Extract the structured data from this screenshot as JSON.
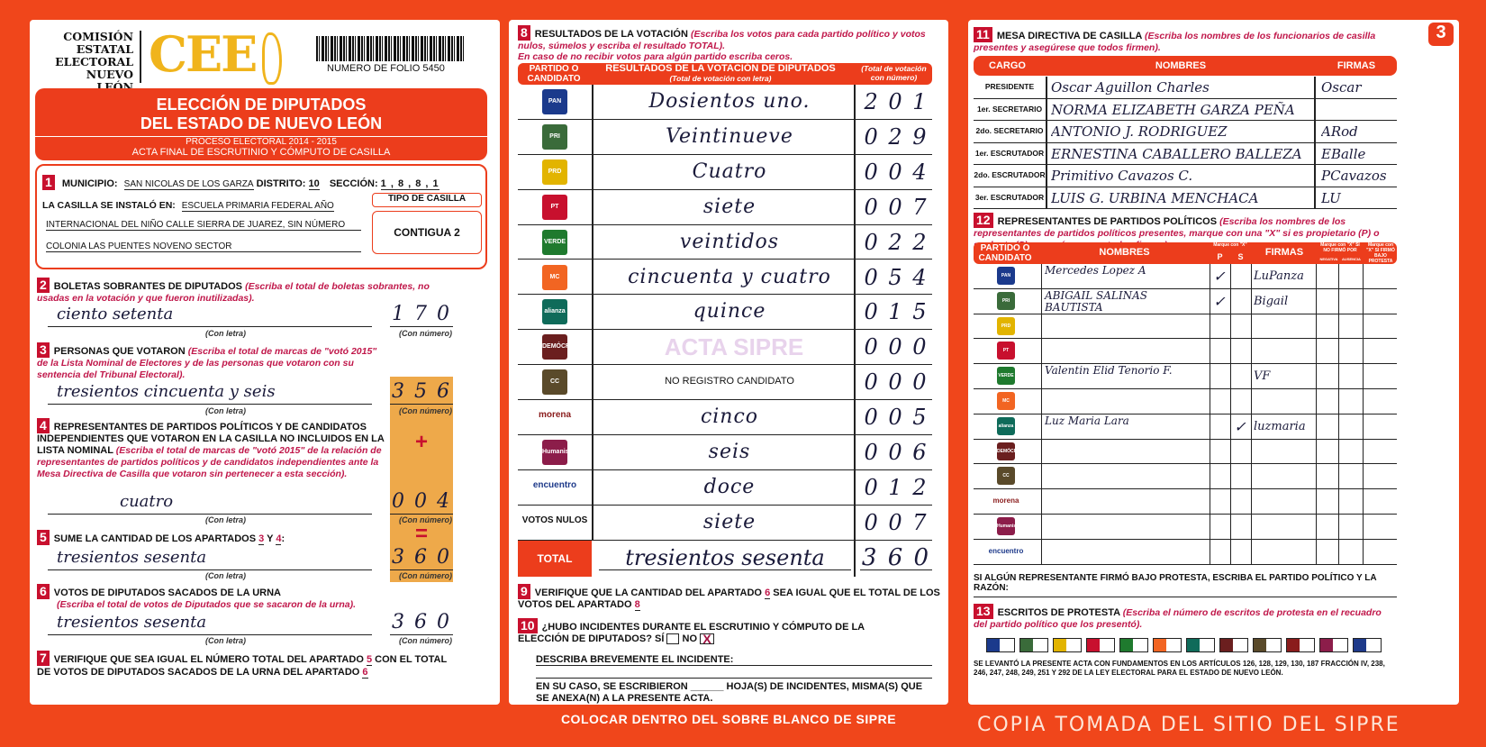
{
  "header": {
    "org_lines": [
      "COMISIÓN",
      "ESTATAL",
      "ELECTORAL",
      "NUEVO LEÓN"
    ],
    "logo_text": "CEE",
    "folio": "NUMERO DE FOLIO 5450",
    "title_line1": "ELECCIÓN DE DIPUTADOS",
    "title_line2": "DEL ESTADO DE NUEVO LEÓN",
    "subtitle1": "PROCESO ELECTORAL 2014 - 2015",
    "subtitle2": "ACTA FINAL DE ESCRUTINIO Y CÓMPUTO DE CASILLA",
    "page_number": "3"
  },
  "s1": {
    "n": "1",
    "municipio_label": "MUNICIPIO:",
    "municipio": "SAN NICOLAS DE LOS GARZA",
    "distrito_label": "DISTRITO:",
    "distrito": "10",
    "seccion_label": "SECCIÓN:",
    "seccion": "1 , 8 , 8 , 1",
    "instalo_label": "LA CASILLA SE INSTALÓ EN:",
    "instalo_1": "ESCUELA PRIMARIA FEDERAL AÑO",
    "instalo_2": "INTERNACIONAL DEL NIÑO CALLE SIERRA DE JUAREZ, SIN NÚMERO",
    "instalo_3": "COLONIA LAS PUENTES NOVENO SECTOR",
    "tipo_label": "TIPO DE CASILLA",
    "tipo": "CONTIGUA 2"
  },
  "labels": {
    "con_letra": "(Con letra)",
    "con_numero": "(Con número)",
    "plus": "+",
    "equals": "="
  },
  "s2": {
    "n": "2",
    "title": "BOLETAS SOBRANTES DE DIPUTADOS",
    "hint": "(Escriba el total de boletas sobrantes, no usadas en la votación y que fueron inutilizadas).",
    "letra": "ciento setenta",
    "numero": "1 7 0"
  },
  "s3": {
    "n": "3",
    "title": "PERSONAS QUE VOTARON",
    "hint": "(Escriba el total de marcas de \"votó 2015\" de la Lista Nominal de Electores y de las personas que votaron con su sentencia del Tribunal Electoral).",
    "letra": "tresientos cincuenta y seis",
    "numero": "3 5 6"
  },
  "s4": {
    "n": "4",
    "title": "REPRESENTANTES DE PARTIDOS POLÍTICOS Y DE CANDIDATOS INDEPENDIENTES QUE VOTARON EN LA CASILLA NO INCLUIDOS EN LA LISTA NOMINAL",
    "hint": "(Escriba el total de marcas de \"votó 2015\" de la relación de representantes de partidos políticos y de candidatos independientes ante la Mesa Directiva de Casilla que votaron sin pertenecer a esta sección).",
    "letra": "cuatro",
    "numero": "0 0 4"
  },
  "s5": {
    "n": "5",
    "title": "SUME LA CANTIDAD DE LOS APARTADOS",
    "a": "3",
    "y": "Y",
    "b": "4",
    "letra": "tresientos sesenta",
    "numero": "3 6 0"
  },
  "s6": {
    "n": "6",
    "title": "VOTOS DE DIPUTADOS SACADOS DE LA URNA",
    "hint": "(Escriba el total de votos de Diputados que se sacaron de la urna).",
    "letra": "tresientos sesenta",
    "numero": "3 6 0"
  },
  "s7": {
    "n": "7",
    "text1": "VERIFIQUE QUE SEA IGUAL EL NÚMERO TOTAL DEL APARTADO",
    "a": "5",
    "text2": "CON EL TOTAL DE VOTOS DE DIPUTADOS SACADOS DE LA URNA DEL APARTADO",
    "b": "6"
  },
  "s8": {
    "n": "8",
    "title": "RESULTADOS DE LA VOTACIÓN",
    "hint1": "(Escriba los votos para cada partido político y votos nulos, súmelos y escriba el resultado TOTAL).",
    "hint2": "En caso de no recibir votos para algún partido escriba ceros.",
    "col1": "PARTIDO O CANDIDATO",
    "col2": "RESULTADOS DE LA VOTACIÓN DE DIPUTADOS",
    "col2_sub": "(Total de votación con letra)",
    "col3": "(Total de votación con número)",
    "rows": [
      {
        "party": "PAN",
        "icon": "pan-logo-icon",
        "color": "#1b3a8c",
        "letra": "Dosientos uno.",
        "numero": "2 0 1"
      },
      {
        "party": "PRI",
        "icon": "pri-logo-icon",
        "color": "#3a6b3a",
        "letra": "Veintinueve",
        "numero": "0 2 9"
      },
      {
        "party": "PRD",
        "icon": "prd-logo-icon",
        "color": "#e2b400",
        "letra": "Cuatro",
        "numero": "0 0 4"
      },
      {
        "party": "PT",
        "icon": "pt-logo-icon",
        "color": "#c8102e",
        "letra": "siete",
        "numero": "0 0 7"
      },
      {
        "party": "VERDE",
        "icon": "verde-logo-icon",
        "color": "#1f7a2e",
        "letra": "veintidos",
        "numero": "0 2 2"
      },
      {
        "party": "MC",
        "icon": "movimiento-ciudadano-logo-icon",
        "color": "#f26522",
        "letra": "cincuenta y cuatro",
        "numero": "0 5 4"
      },
      {
        "party": "alianza",
        "icon": "nueva-alianza-logo-icon",
        "color": "#0f6b5a",
        "letra": "quince",
        "numero": "0 1 5"
      },
      {
        "party": "DEMÓCRATA",
        "icon": "partido-democrata-logo-icon",
        "color": "#6b1f1f",
        "letra": "",
        "numero": "0 0 0"
      },
      {
        "party": "CC",
        "icon": "cruzada-ciudadana-logo-icon",
        "color": "#5a4a2a",
        "letra": "NO REGISTRO CANDIDATO",
        "numero": "0 0 0",
        "printed": true
      },
      {
        "party": "morena",
        "icon": "morena-logo-icon",
        "color": "#8a1c1c",
        "letra": "cinco",
        "numero": "0 0 5",
        "text_logo": true
      },
      {
        "party": "Humanista",
        "icon": "humanista-logo-icon",
        "color": "#8c1d4a",
        "letra": "seis",
        "numero": "0 0 6"
      },
      {
        "party": "encuentro",
        "icon": "encuentro-social-logo-icon",
        "color": "#1e3a8a",
        "letra": "doce",
        "numero": "0 1 2",
        "text_logo": true
      },
      {
        "party": "VOTOS NULOS",
        "icon": "",
        "color": "",
        "letra": "siete",
        "numero": "0 0 7",
        "text_logo": true
      }
    ],
    "total_label": "TOTAL",
    "total_letra": "tresientos sesenta",
    "total_numero": "3 6 0"
  },
  "s9": {
    "n": "9",
    "text1": "VERIFIQUE QUE LA CANTIDAD DEL APARTADO",
    "a": "6",
    "text2": "SEA IGUAL QUE EL TOTAL DE LOS VOTOS DEL APARTADO",
    "b": "8"
  },
  "s10": {
    "n": "10",
    "question": "¿HUBO INCIDENTES DURANTE EL ESCRUTINIO Y CÓMPUTO DE LA ELECCIÓN DE DIPUTADOS?",
    "si": "SÍ",
    "no": "NO",
    "no_mark": "X",
    "describe": "DESCRIBA BREVEMENTE EL INCIDENTE:",
    "hojas": "EN SU CASO, SE ESCRIBIERON ______ HOJA(S) DE INCIDENTES, MISMA(S) QUE SE ANEXA(N) A LA PRESENTE ACTA."
  },
  "footer": "COLOCAR DENTRO DEL SOBRE BLANCO DE SIPRE",
  "watermark": "COPIA TOMADA DEL SITIO DEL SIPRE",
  "stamp": "ACTA SIPRE",
  "s11": {
    "n": "11",
    "title": "MESA DIRECTIVA DE CASILLA",
    "hint": "(Escriba los nombres de los funcionarios de casilla presentes y asegúrese que todos firmen).",
    "col_cargo": "CARGO",
    "col_nombres": "NOMBRES",
    "col_firmas": "FIRMAS",
    "rows": [
      {
        "cargo": "PRESIDENTE",
        "nombre": "Oscar Aguillon Charles",
        "firma": "Oscar"
      },
      {
        "cargo": "1er. SECRETARIO",
        "nombre": "NORMA ELIZABETH GARZA PEÑA",
        "firma": ""
      },
      {
        "cargo": "2do. SECRETARIO",
        "nombre": "ANTONIO J. RODRIGUEZ",
        "firma": "ARod"
      },
      {
        "cargo": "1er. ESCRUTADOR",
        "nombre": "ERNESTINA CABALLERO BALLEZA",
        "firma": "EBalle"
      },
      {
        "cargo": "2do. ESCRUTADOR",
        "nombre": "Primitivo Cavazos C.",
        "firma": "PCavazos"
      },
      {
        "cargo": "3er. ESCRUTADOR",
        "nombre": "LUIS G. URBINA MENCHACA",
        "firma": "LU"
      }
    ]
  },
  "s12": {
    "n": "12",
    "title": "REPRESENTANTES DE PARTIDOS POLÍTICOS",
    "hint": "(Escriba los nombres de los representantes de partidos políticos presentes, marque con una \"X\" si es propietario (P) o suplente (S) y asegúrese que todos firmen).",
    "col_partido": "PARTIDO O CANDIDATO",
    "col_nombres": "NOMBRES",
    "col_marque": "Marque con \"X\"",
    "col_p": "P",
    "col_s": "S",
    "col_firmas": "FIRMAS",
    "col_protesta": "Marque con \"X\" SI NO FIRMÓ POR",
    "col_negativa": "NEGATIVA",
    "col_ausencia": "AUSENCIA",
    "col_bajo": "Marque con \"X\" SI FIRMÓ BAJO PROTESTA",
    "rows": [
      {
        "party": "PAN",
        "nombre": "Mercedes Lopez A",
        "p": "✓",
        "s": "",
        "firma": "LuPanza"
      },
      {
        "party": "PRI",
        "nombre": "ABIGAIL SALINAS BAUTISTA",
        "p": "✓",
        "s": "",
        "firma": "Bigail"
      },
      {
        "party": "PRD",
        "nombre": "",
        "p": "",
        "s": "",
        "firma": ""
      },
      {
        "party": "PT",
        "nombre": "",
        "p": "",
        "s": "",
        "firma": ""
      },
      {
        "party": "VERDE",
        "nombre": "Valentin Elid Tenorio F.",
        "p": "",
        "s": "",
        "firma": "VF"
      },
      {
        "party": "MC",
        "nombre": "",
        "p": "",
        "s": "",
        "firma": ""
      },
      {
        "party": "alianza",
        "nombre": "Luz Maria Lara",
        "p": "",
        "s": "✓",
        "firma": "luzmaria"
      },
      {
        "party": "DEMÓCRATA",
        "nombre": "",
        "p": "",
        "s": "",
        "firma": ""
      },
      {
        "party": "CC",
        "nombre": "",
        "p": "",
        "s": "",
        "firma": ""
      },
      {
        "party": "morena",
        "nombre": "",
        "p": "",
        "s": "",
        "firma": ""
      },
      {
        "party": "Humanista",
        "nombre": "",
        "p": "",
        "s": "",
        "firma": ""
      },
      {
        "party": "encuentro",
        "nombre": "",
        "p": "",
        "s": "",
        "firma": ""
      }
    ],
    "protesta": "SI ALGÚN REPRESENTANTE FIRMÓ BAJO PROTESTA, ESCRIBA EL PARTIDO POLÍTICO Y LA RAZÓN:"
  },
  "s13": {
    "n": "13",
    "title": "ESCRITOS DE PROTESTA",
    "hint": "(Escriba el número de escritos de protesta en el recuadro del partido político que los presentó).",
    "legal": "SE LEVANTÓ LA PRESENTE ACTA CON FUNDAMENTOS EN LOS ARTÍCULOS 126, 128, 129, 130, 187 FRACCIÓN IV, 238, 246, 247, 248, 249, 251 Y 292 DE LA LEY ELECTORAL PARA EL ESTADO DE NUEVO LEÓN."
  }
}
